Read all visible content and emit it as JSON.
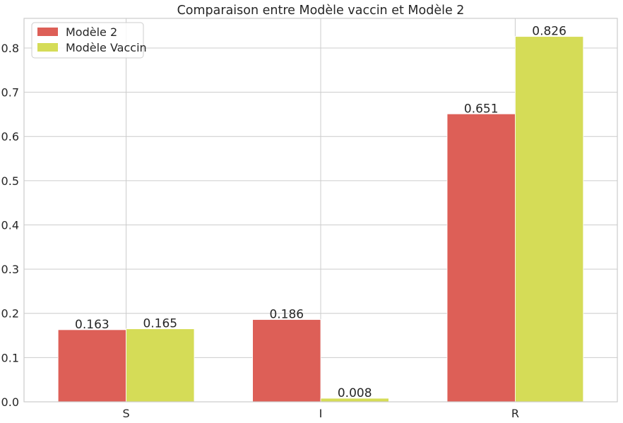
{
  "chart_data": {
    "type": "bar",
    "title": "Comparaison entre Modèle vaccin et Modèle 2",
    "xlabel": "",
    "ylabel": "",
    "categories": [
      "S",
      "I",
      "R"
    ],
    "series": [
      {
        "name": "Modèle 2",
        "values": [
          0.163,
          0.186,
          0.651
        ],
        "labels": [
          "0.163",
          "0.186",
          "0.651"
        ],
        "color": "#dd5f57"
      },
      {
        "name": "Modèle Vaccin",
        "values": [
          0.165,
          0.008,
          0.826
        ],
        "labels": [
          "0.165",
          "0.008",
          "0.826"
        ],
        "color": "#d5dc57"
      }
    ],
    "ylim": [
      0,
      0.867
    ],
    "yticks": [
      0.0,
      0.1,
      0.2,
      0.3,
      0.4,
      0.5,
      0.6,
      0.7,
      0.8
    ],
    "ytick_labels": [
      "0.0",
      "0.1",
      "0.2",
      "0.3",
      "0.4",
      "0.5",
      "0.6",
      "0.7",
      "0.8"
    ],
    "grid": true,
    "legend_position": "top-left",
    "colors": {
      "grid": "#cccccc",
      "axes_edge": "#cccccc",
      "text": "#262626"
    }
  }
}
